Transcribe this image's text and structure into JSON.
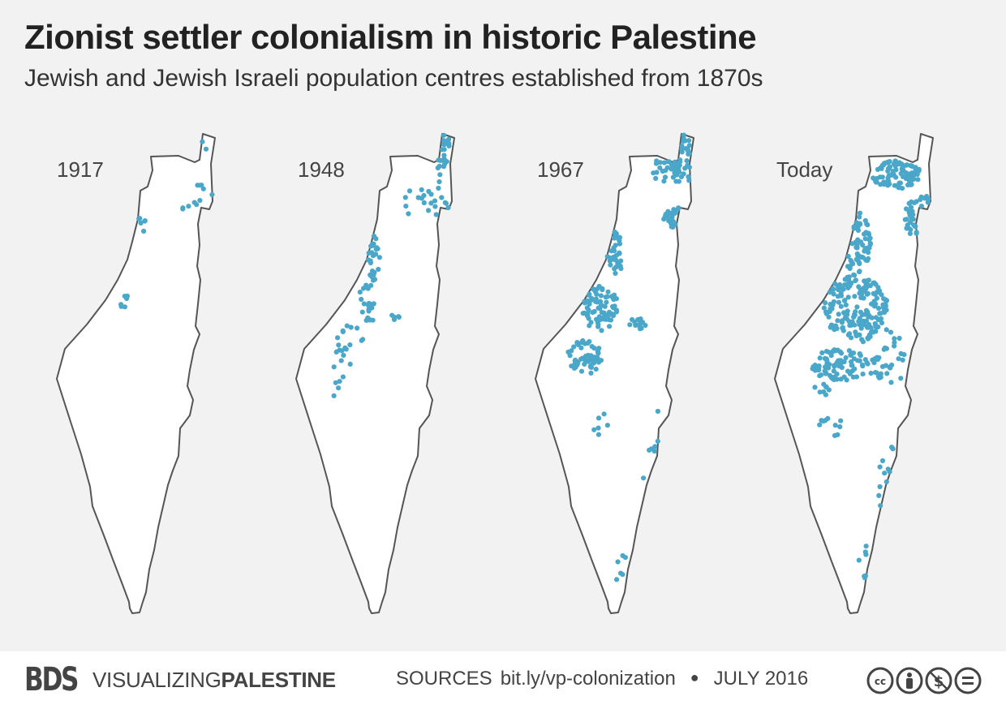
{
  "title": "Zionist settler colonialism in historic Palestine",
  "subtitle": "Jewish and Jewish Israeli population centres established from 1870s",
  "colors": {
    "background": "#f2f2f2",
    "dot": "#4aa7c9",
    "outline": "#555555",
    "land": "#ffffff"
  },
  "maps": [
    {
      "label": "1917",
      "density": "very-low"
    },
    {
      "label": "1948",
      "density": "low"
    },
    {
      "label": "1967",
      "density": "medium"
    },
    {
      "label": "Today",
      "density": "high"
    }
  ],
  "footer": {
    "logo": "BDS",
    "brand_light": "VISUALIZING",
    "brand_bold": "PALESTINE",
    "sources_label": "SOURCES",
    "sources_link": "bit.ly/vp-colonization",
    "date": "JULY 2016",
    "license_icons": [
      "cc-icon",
      "attribution-icon",
      "noncommercial-icon",
      "noderivatives-icon"
    ]
  }
}
